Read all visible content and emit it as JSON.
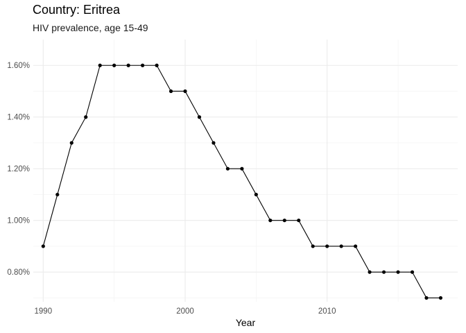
{
  "chart_data": {
    "type": "line",
    "title": "Country: Eritrea",
    "subtitle": "HIV prevalence, age 15-49",
    "xlabel": "Year",
    "ylabel": "",
    "xlim": [
      1989.3,
      2019.2
    ],
    "ylim": [
      0.685,
      1.7
    ],
    "x_ticks": [
      1990,
      2000,
      2010
    ],
    "y_ticks": [
      0.8,
      1.0,
      1.2,
      1.4,
      1.6
    ],
    "y_tick_labels": [
      "0.80%",
      "1.00%",
      "1.20%",
      "1.40%",
      "1.60%"
    ],
    "grid": true,
    "series": [
      {
        "x": [
          1990,
          1991,
          1992,
          1993,
          1994,
          1995,
          1996,
          1997,
          1998,
          1999,
          2000,
          2001,
          2002,
          2003,
          2004,
          2005,
          2006,
          2007,
          2008,
          2009,
          2010,
          2011,
          2012,
          2013,
          2014,
          2015,
          2016,
          2017,
          2018
        ],
        "values": [
          0.9,
          1.1,
          1.3,
          1.4,
          1.6,
          1.6,
          1.6,
          1.6,
          1.6,
          1.5,
          1.5,
          1.4,
          1.3,
          1.2,
          1.2,
          1.1,
          1.0,
          1.0,
          1.0,
          0.9,
          0.9,
          0.9,
          0.9,
          0.8,
          0.8,
          0.8,
          0.8,
          0.7,
          0.7
        ]
      }
    ]
  }
}
